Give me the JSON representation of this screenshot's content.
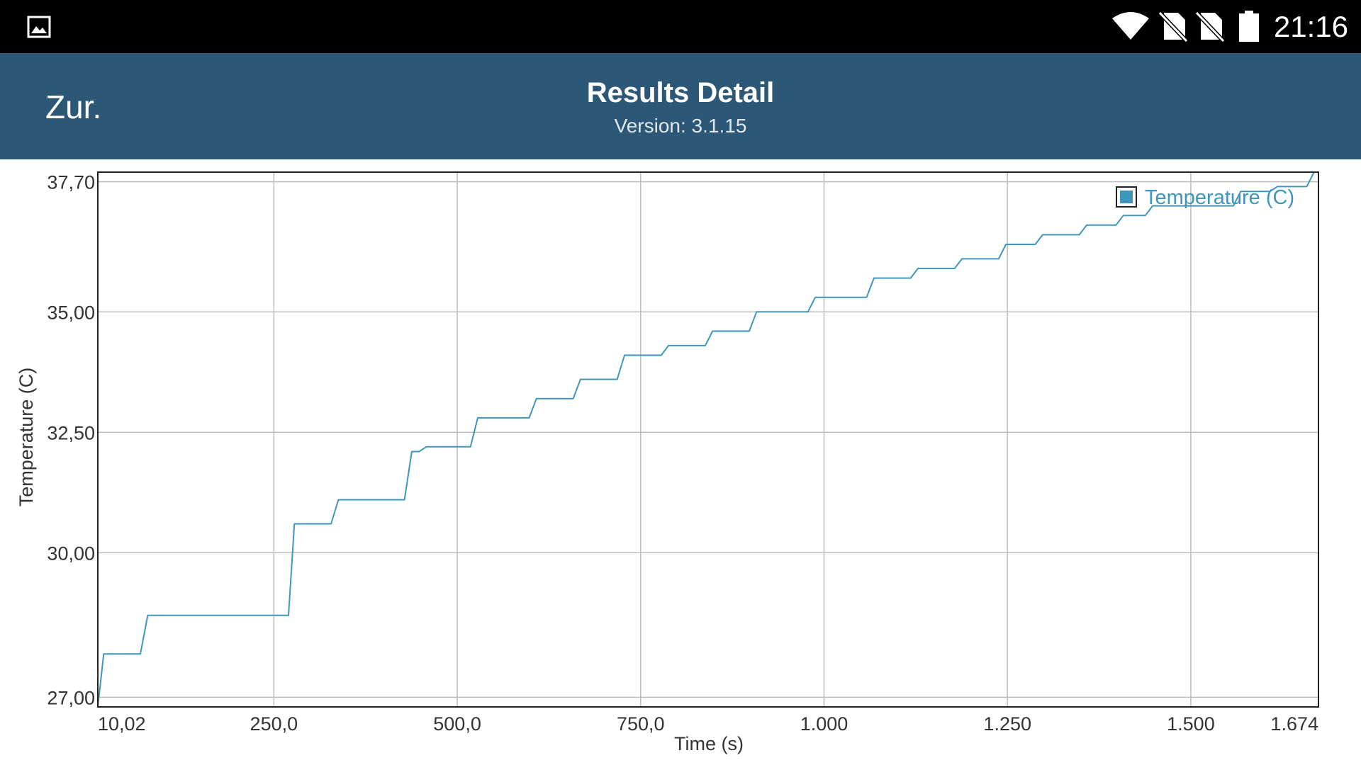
{
  "status_bar": {
    "time": "21:16",
    "icons": [
      "gallery-icon",
      "wifi-icon",
      "no-sim-icon",
      "no-sim-icon",
      "battery-icon"
    ]
  },
  "app_bar": {
    "back_label": "Zur.",
    "title": "Results Detail",
    "subtitle": "Version: 3.1.15",
    "background_color": "#2c5777"
  },
  "chart_data": {
    "type": "line",
    "title": "",
    "xlabel": "Time (s)",
    "ylabel": "Temperature (C)",
    "xlim": [
      10.02,
      1674
    ],
    "ylim": [
      26.8,
      37.9
    ],
    "x_ticks": [
      {
        "value": 10.02,
        "label": "10,02"
      },
      {
        "value": 250,
        "label": "250,0"
      },
      {
        "value": 500,
        "label": "500,0"
      },
      {
        "value": 750,
        "label": "750,0"
      },
      {
        "value": 1000,
        "label": "1.000"
      },
      {
        "value": 1250,
        "label": "1.250"
      },
      {
        "value": 1500,
        "label": "1.500"
      },
      {
        "value": 1674,
        "label": "1.674"
      }
    ],
    "y_ticks": [
      {
        "value": 27.0,
        "label": "27,00"
      },
      {
        "value": 30.0,
        "label": "30,00"
      },
      {
        "value": 32.5,
        "label": "32,50"
      },
      {
        "value": 35.0,
        "label": "35,00"
      },
      {
        "value": 37.7,
        "label": "37,70"
      }
    ],
    "grid": true,
    "legend_position": "top-right",
    "series": [
      {
        "name": "Temperature (C)",
        "color": "#3e97ba",
        "x": [
          10,
          18,
          68,
          78,
          270,
          278,
          328,
          338,
          428,
          438,
          448,
          458,
          468,
          518,
          528,
          598,
          608,
          658,
          668,
          718,
          728,
          778,
          788,
          838,
          848,
          898,
          908,
          978,
          988,
          1058,
          1068,
          1118,
          1128,
          1178,
          1188,
          1238,
          1248,
          1288,
          1298,
          1348,
          1358,
          1398,
          1408,
          1438,
          1448,
          1558,
          1568,
          1608,
          1618,
          1658,
          1668
        ],
        "y": [
          26.8,
          27.9,
          27.9,
          28.7,
          28.7,
          30.6,
          30.6,
          31.1,
          31.1,
          32.1,
          32.1,
          32.2,
          32.2,
          32.2,
          32.8,
          32.8,
          33.2,
          33.2,
          33.6,
          33.6,
          34.1,
          34.1,
          34.3,
          34.3,
          34.6,
          34.6,
          35.0,
          35.0,
          35.3,
          35.3,
          35.7,
          35.7,
          35.9,
          35.9,
          36.1,
          36.1,
          36.4,
          36.4,
          36.6,
          36.6,
          36.8,
          36.8,
          37.0,
          37.0,
          37.2,
          37.2,
          37.5,
          37.5,
          37.6,
          37.6,
          37.9
        ]
      }
    ]
  }
}
